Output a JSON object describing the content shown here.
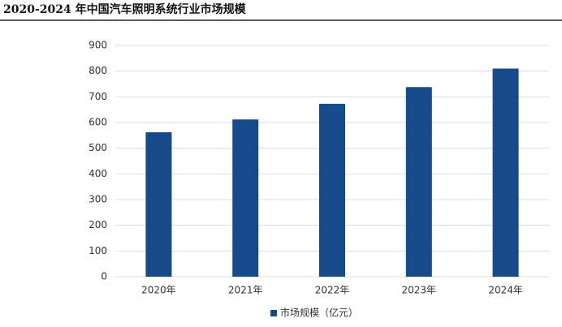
{
  "chart_data": {
    "type": "bar",
    "title": "2020-2024 年中国汽车照明系统行业市场规模",
    "categories": [
      "2020年",
      "2021年",
      "2022年",
      "2023年",
      "2024年"
    ],
    "series": [
      {
        "name": "市场规模（亿元）",
        "color": "#174a8b",
        "values": [
          562,
          612,
          673,
          738,
          810
        ]
      }
    ],
    "ylim": [
      0,
      900
    ],
    "yticks": [
      0,
      100,
      200,
      300,
      400,
      500,
      600,
      700,
      800,
      900
    ],
    "grid": true,
    "legend": "bottom"
  }
}
